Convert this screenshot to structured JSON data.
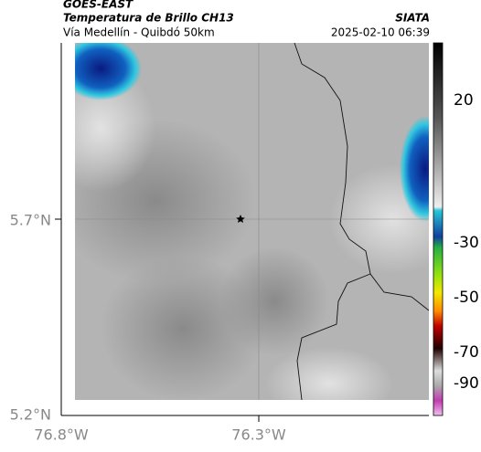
{
  "header": {
    "satellite": "GOES-EAST",
    "product": "Temperatura de Brillo CH13",
    "region": "Vía Medellín - Quibdó 50km",
    "source": "SIATA",
    "timestamp": "2025-02-10 06:39"
  },
  "map": {
    "lat_labels": [
      "5.7°N",
      "5.2°N"
    ],
    "lon_labels": [
      "76.8°W",
      "76.3°W"
    ]
  },
  "colorbar": {
    "ticks": [
      20,
      -30,
      -50,
      -70,
      -90
    ]
  }
}
